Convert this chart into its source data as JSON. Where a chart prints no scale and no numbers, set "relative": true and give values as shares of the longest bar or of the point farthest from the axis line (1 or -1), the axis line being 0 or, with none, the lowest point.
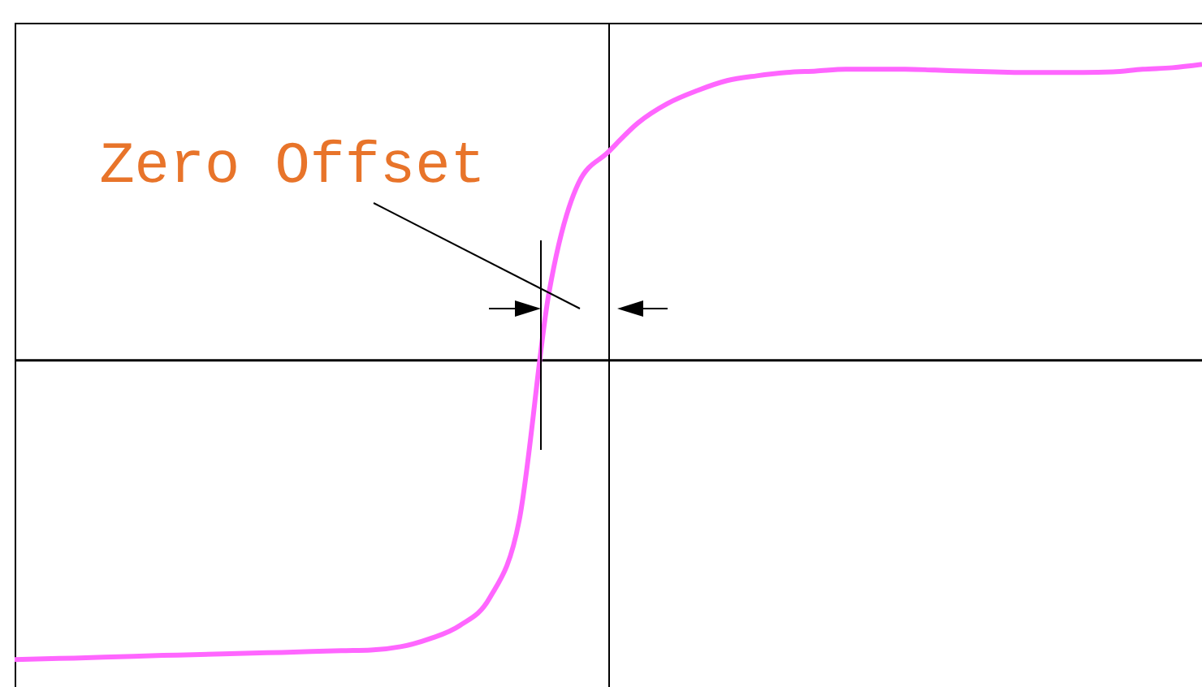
{
  "chart_data": {
    "type": "line",
    "relative": true,
    "grid": false,
    "annotations": [
      "Zero Offset"
    ],
    "categories": [
      null,
      null,
      null,
      null,
      null,
      null,
      null,
      null,
      null,
      null,
      null,
      null,
      null,
      null,
      null,
      null,
      null,
      null,
      null,
      null,
      null,
      null,
      null,
      null,
      null,
      null,
      null,
      null,
      null,
      null,
      null,
      null,
      null,
      null,
      null,
      null,
      null,
      null,
      null,
      null,
      null
    ],
    "series": [
      {
        "color": "#ff66ff",
        "values": [
          -1,
          -0.997,
          -0.995,
          -0.992,
          -0.989,
          -0.986,
          -0.984,
          -0.981,
          -0.978,
          -0.976,
          -0.973,
          -0.97,
          -0.968,
          -0.957,
          -0.93,
          -0.886,
          -0.795,
          -0.535,
          0.222,
          0.589,
          0.692,
          0.789,
          0.854,
          0.897,
          0.93,
          0.946,
          0.957,
          0.962,
          0.968,
          0.968,
          0.968,
          0.965,
          0.962,
          0.959,
          0.957,
          0.957,
          0.957,
          0.959,
          0.968,
          0.973,
          0.984
        ]
      }
    ]
  }
}
